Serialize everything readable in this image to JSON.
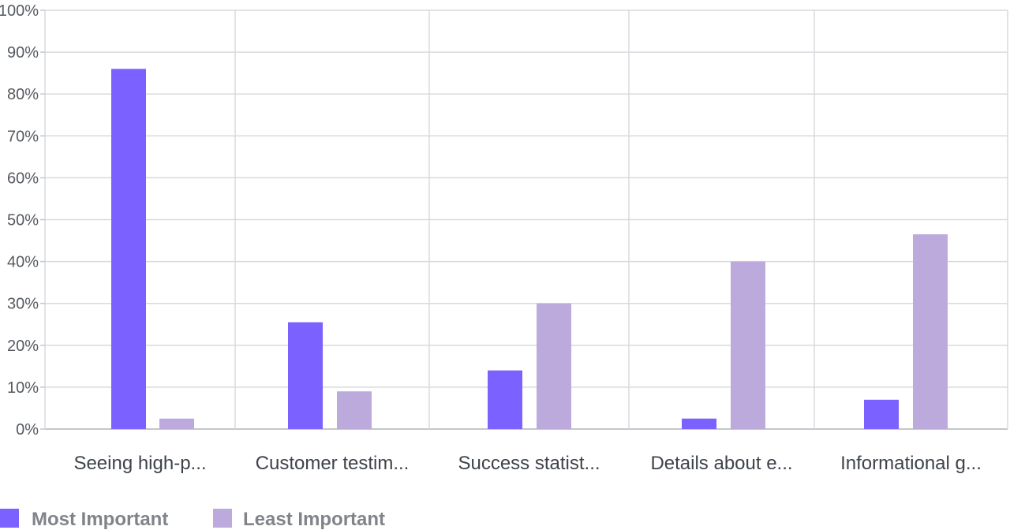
{
  "chart_data": {
    "type": "bar",
    "title": "",
    "xlabel": "",
    "ylabel": "",
    "ylim": [
      0,
      100
    ],
    "yticks": [
      "0%",
      "10%",
      "20%",
      "30%",
      "40%",
      "50%",
      "60%",
      "70%",
      "80%",
      "90%",
      "100%"
    ],
    "categories": [
      "Seeing high-p...",
      "Customer testim...",
      "Success statist...",
      "Details about e...",
      "Informational g..."
    ],
    "series": [
      {
        "name": "Most Important",
        "color": "#7b61ff",
        "values": [
          86,
          25.5,
          14,
          2.5,
          7
        ]
      },
      {
        "name": "Least Important",
        "color": "#bcaadd",
        "values": [
          2.5,
          9,
          30,
          40,
          46.5
        ]
      }
    ],
    "grid": true,
    "legend_position": "bottom-left"
  }
}
